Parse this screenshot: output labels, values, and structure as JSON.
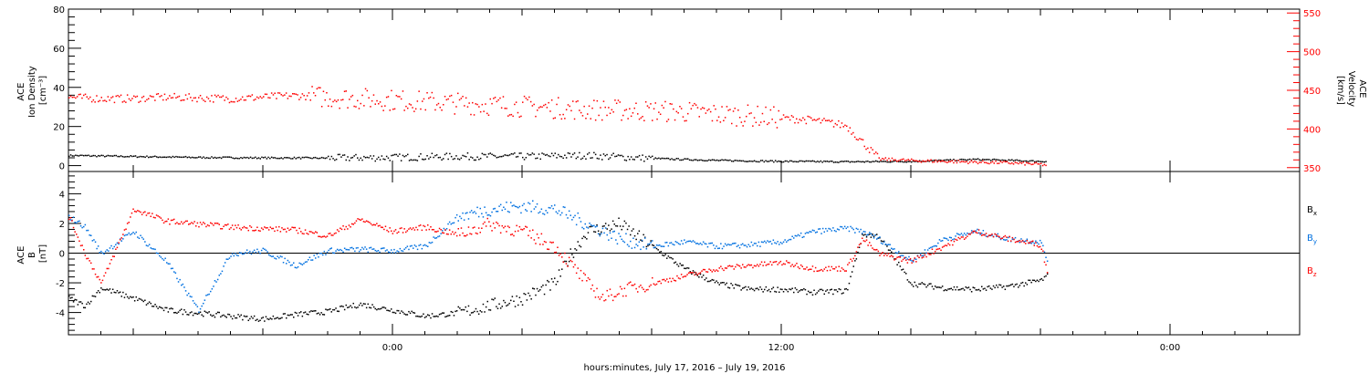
{
  "x_axis": {
    "label": "hours:minutes, July 17, 2016 – July 19, 2016",
    "range_hours": [
      -10,
      28
    ],
    "ticks": [
      {
        "hours": 0,
        "label": "0:00"
      },
      {
        "hours": 12,
        "label": "12:00"
      },
      {
        "hours": 24,
        "label": "0:00"
      }
    ]
  },
  "chart_data": [
    {
      "type": "scatter",
      "panel": "top",
      "y_left": {
        "label_lines": [
          "ACE",
          "Ion Density",
          "[cm⁻³]"
        ],
        "range": [
          -3,
          80
        ],
        "ticks": [
          0,
          20,
          40,
          60,
          80
        ]
      },
      "y_right": {
        "label_lines": [
          "ACE",
          "Velocity",
          "[km/s]"
        ],
        "range": [
          345,
          555
        ],
        "ticks": [
          350,
          400,
          450,
          500,
          550
        ],
        "color": "#ff0000"
      },
      "series": [
        {
          "key": "density",
          "axis": "left",
          "color": "#000000",
          "x": [
            -10,
            -8,
            -6,
            -4,
            -2,
            0,
            2,
            4,
            6,
            8,
            10,
            12,
            14,
            16,
            18,
            20,
            20.2
          ],
          "y": [
            5.5,
            5,
            4.5,
            4.3,
            4.2,
            4.5,
            5,
            5,
            5.5,
            4,
            3,
            2.5,
            2.3,
            2.5,
            3.5,
            2.5,
            2.5
          ]
        },
        {
          "key": "velocity",
          "axis": "right",
          "color": "#ff0000",
          "x": [
            -10,
            -9,
            -8,
            -7,
            -6,
            -5,
            -4,
            -3,
            -2,
            -1,
            0,
            1,
            2,
            3,
            4,
            5,
            6,
            7,
            8,
            9,
            10,
            11,
            12,
            13,
            14,
            15,
            16,
            17,
            18,
            19,
            20,
            20.2
          ],
          "y": [
            442,
            440,
            440,
            442,
            441,
            440,
            442,
            444,
            442,
            440,
            438,
            436,
            434,
            432,
            430,
            428,
            426,
            425,
            424,
            423,
            420,
            418,
            415,
            412,
            405,
            362,
            360,
            359,
            358,
            357,
            355,
            354
          ]
        }
      ]
    },
    {
      "type": "scatter",
      "panel": "bottom",
      "y_left": {
        "label_lines": [
          "ACE",
          "B",
          "[nT]"
        ],
        "range": [
          -5.5,
          5.5
        ],
        "ticks": [
          -4,
          -2,
          0,
          2,
          4
        ]
      },
      "reference_line": 0,
      "series": [
        {
          "key": "bx",
          "name": "B",
          "subscript": "x",
          "color": "#000000",
          "x": [
            -10,
            -9.5,
            -9,
            -8,
            -7,
            -6,
            -5,
            -4,
            -3,
            -2,
            -1,
            0,
            1,
            2,
            3,
            4,
            5,
            5.5,
            6,
            7,
            8,
            9,
            10,
            11,
            12,
            13,
            14,
            14.5,
            15,
            16,
            17,
            18,
            19,
            20,
            20.2
          ],
          "y": [
            -3,
            -3.5,
            -2.3,
            -3,
            -3.8,
            -4,
            -4.2,
            -4.4,
            -4.1,
            -3.9,
            -3.4,
            -3.8,
            -4.2,
            -4,
            -3.5,
            -3,
            -2,
            0,
            1.5,
            2,
            0.5,
            -1,
            -2,
            -2.4,
            -2.4,
            -2.6,
            -2.5,
            1.3,
            1.2,
            -2,
            -2.3,
            -2.4,
            -2.2,
            -1.8,
            -1.5
          ]
        },
        {
          "key": "by",
          "name": "B",
          "subscript": "y",
          "color": "#0070e0",
          "x": [
            -10,
            -9.5,
            -9,
            -8,
            -7,
            -6,
            -5,
            -4,
            -3,
            -2,
            -1,
            0,
            1,
            2,
            3,
            4,
            5,
            6,
            7,
            8,
            9,
            10,
            11,
            12,
            13,
            14,
            14.5,
            15,
            16,
            17,
            18,
            19,
            20,
            20.2
          ],
          "y": [
            2.5,
            1.8,
            0,
            1.5,
            -0.5,
            -3.8,
            0,
            0.2,
            -0.8,
            0.2,
            0.3,
            0.2,
            0.5,
            2.5,
            3,
            3.2,
            3,
            2,
            1,
            0.5,
            0.8,
            0.5,
            0.6,
            0.8,
            1.5,
            1.7,
            1.5,
            1,
            -0.5,
            1,
            1.5,
            1,
            0.8,
            -0.5
          ]
        },
        {
          "key": "bz",
          "name": "B",
          "subscript": "z",
          "color": "#ff0000",
          "x": [
            -10,
            -9.5,
            -9,
            -8,
            -7,
            -6,
            -5,
            -4,
            -3,
            -2,
            -1,
            0,
            1,
            2,
            3,
            4,
            5,
            6,
            6.5,
            7,
            8,
            9,
            10,
            11,
            12,
            13,
            14,
            14.5,
            15,
            16,
            17,
            18,
            19,
            20,
            20.2
          ],
          "y": [
            2.5,
            0,
            -2,
            3,
            2.2,
            2,
            1.8,
            1.7,
            1.6,
            1.2,
            2.3,
            1.5,
            1.8,
            1.3,
            2,
            1.5,
            0.5,
            -2,
            -3,
            -2.5,
            -2,
            -1.5,
            -1,
            -0.8,
            -0.6,
            -1,
            -1,
            1,
            0,
            -0.5,
            0.5,
            1.5,
            1,
            0.6,
            -1.3
          ]
        }
      ]
    }
  ]
}
